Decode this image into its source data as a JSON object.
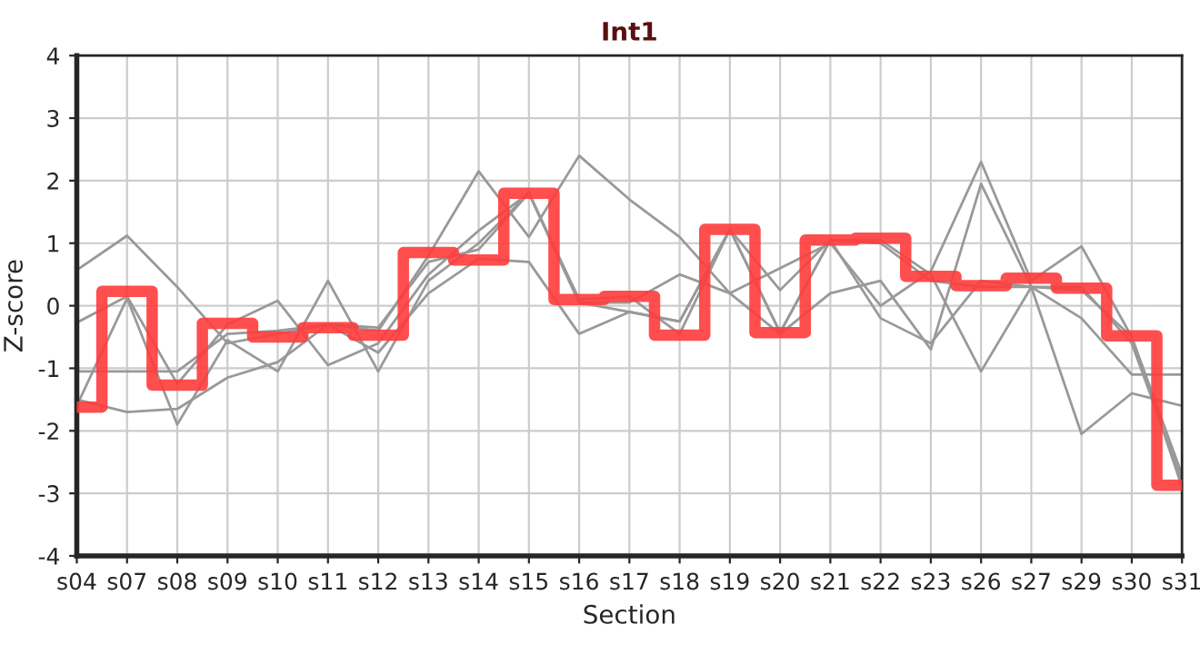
{
  "chart_data": {
    "type": "line",
    "title": "Int1",
    "xlabel": "Section",
    "ylabel": "Z-score",
    "categories": [
      "s04",
      "s07",
      "s08",
      "s09",
      "s10",
      "s11",
      "s12",
      "s13",
      "s14",
      "s15",
      "s16",
      "s17",
      "s18",
      "s19",
      "s20",
      "s21",
      "s22",
      "s23",
      "s26",
      "s27",
      "s29",
      "s30",
      "s31"
    ],
    "series": [
      {
        "color": "#999999",
        "values": [
          0.57,
          1.12,
          0.3,
          -0.6,
          -0.45,
          -0.3,
          -0.4,
          0.8,
          2.15,
          1.1,
          2.4,
          1.7,
          1.1,
          0.2,
          0.6,
          1.0,
          0.0,
          0.55,
          2.3,
          0.4,
          0.95,
          -0.5,
          -2.7
        ]
      },
      {
        "color": "#999999",
        "values": [
          -0.27,
          0.15,
          -1.25,
          -0.3,
          0.08,
          -0.95,
          -0.6,
          0.5,
          1.2,
          1.8,
          0.05,
          0.05,
          0.5,
          0.2,
          -0.45,
          0.2,
          0.4,
          -0.7,
          1.95,
          0.3,
          -2.05,
          -1.4,
          -1.6
        ]
      },
      {
        "color": "#999999",
        "values": [
          -1.05,
          -1.05,
          -1.05,
          -0.45,
          -0.4,
          -0.3,
          -0.35,
          0.7,
          0.9,
          1.8,
          0.05,
          -0.1,
          -0.25,
          1.22,
          -0.43,
          1.05,
          1.05,
          0.5,
          -1.05,
          0.3,
          -0.2,
          -1.1,
          -1.1
        ]
      },
      {
        "color": "#999999",
        "values": [
          -1.5,
          -1.7,
          -1.65,
          -1.15,
          -0.9,
          -0.3,
          -0.75,
          0.2,
          0.75,
          0.7,
          -0.45,
          -0.1,
          -0.25,
          1.22,
          -0.43,
          1.05,
          -0.2,
          -0.6,
          0.4,
          0.3,
          0.3,
          -0.6,
          -2.8
        ]
      },
      {
        "color": "#999999",
        "values": [
          -1.6,
          0.12,
          -1.9,
          -0.55,
          -1.05,
          0.4,
          -1.05,
          0.4,
          1.0,
          1.8,
          0.1,
          0.15,
          -0.45,
          1.22,
          0.25,
          1.05,
          1.0,
          0.4,
          0.3,
          0.3,
          0.25,
          -0.5,
          -2.9
        ]
      },
      {
        "type": "step",
        "color": "#ff3b3b",
        "values": [
          -1.62,
          0.23,
          -1.27,
          -0.28,
          -0.5,
          -0.35,
          -0.47,
          0.85,
          0.73,
          1.8,
          0.1,
          0.15,
          -0.47,
          1.22,
          -0.43,
          1.05,
          1.08,
          0.47,
          0.32,
          0.44,
          0.28,
          -0.48,
          -2.87
        ]
      }
    ],
    "ylim": [
      -4,
      4
    ],
    "yticks": [
      -4,
      -3,
      -2,
      -1,
      0,
      1,
      2,
      3,
      4
    ],
    "grid": true,
    "legend": false,
    "marker": "none",
    "line_style": "solid"
  }
}
